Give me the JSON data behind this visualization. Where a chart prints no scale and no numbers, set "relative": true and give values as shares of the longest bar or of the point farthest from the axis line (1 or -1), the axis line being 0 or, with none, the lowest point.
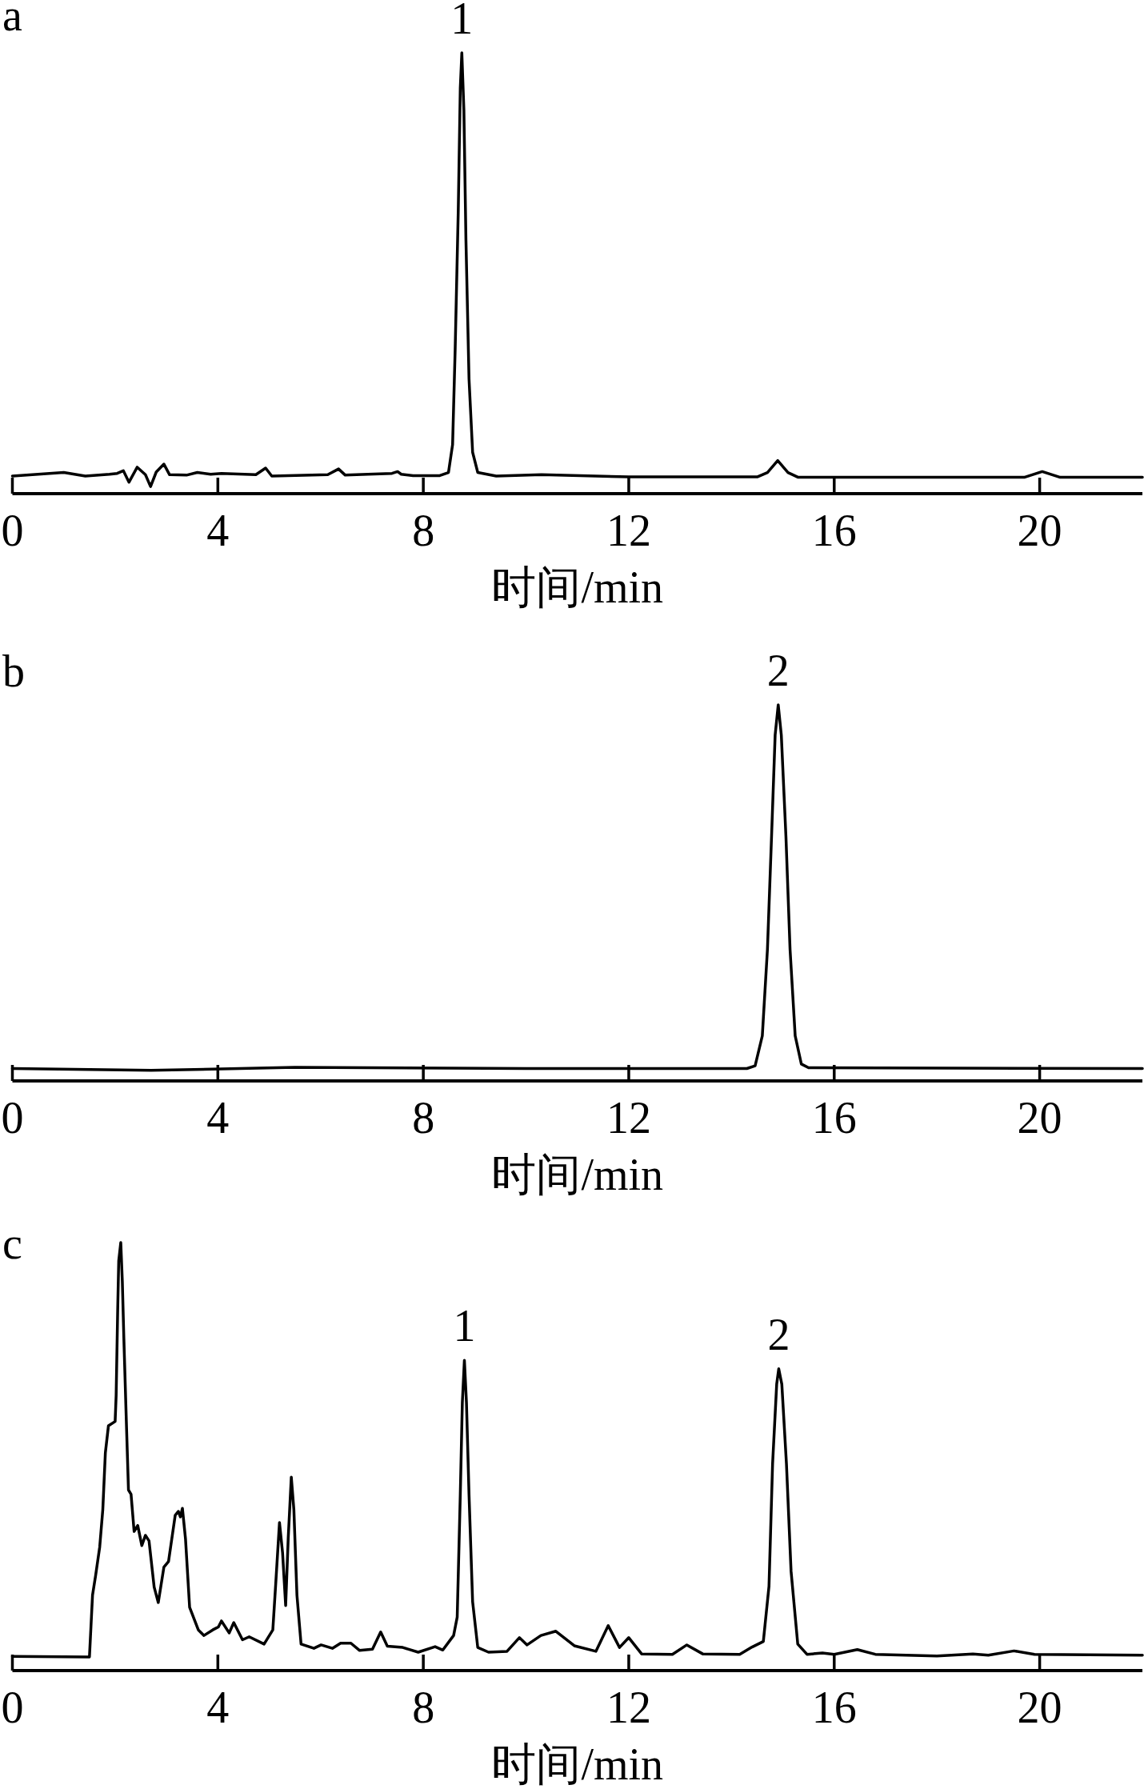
{
  "chart_data": [
    {
      "type": "line",
      "title": "a",
      "xlabel": "时间/min",
      "relative": true,
      "color": "#000000",
      "xlim": [
        0,
        22
      ],
      "xticks": [
        0,
        4,
        8,
        12,
        16,
        20
      ],
      "x": [
        0,
        1.0,
        1.42,
        1.89,
        2.04,
        2.16,
        2.27,
        2.43,
        2.59,
        2.69,
        2.8,
        2.95,
        3.06,
        3.39,
        3.6,
        3.86,
        4.07,
        4.74,
        4.93,
        5.05,
        6.14,
        6.35,
        6.48,
        6.92,
        7.39,
        7.5,
        7.57,
        7.8,
        8.32,
        8.49,
        8.57,
        8.62,
        8.68,
        8.72,
        8.75,
        8.79,
        8.83,
        8.89,
        8.96,
        9.06,
        9.42,
        10.3,
        12,
        14.5,
        14.7,
        14.9,
        15.1,
        15.3,
        19.7,
        20.05,
        20.4,
        22
      ],
      "values": [
        0.04,
        0.048,
        0.04,
        0.044,
        0.046,
        0.052,
        0.026,
        0.06,
        0.043,
        0.016,
        0.049,
        0.067,
        0.043,
        0.042,
        0.048,
        0.044,
        0.046,
        0.043,
        0.058,
        0.04,
        0.043,
        0.056,
        0.042,
        0.044,
        0.046,
        0.05,
        0.044,
        0.041,
        0.041,
        0.048,
        0.111,
        0.326,
        0.64,
        0.92,
        1,
        0.87,
        0.575,
        0.26,
        0.094,
        0.048,
        0.04,
        0.043,
        0.038,
        0.038,
        0.048,
        0.075,
        0.048,
        0.037,
        0.037,
        0.05,
        0.037,
        0.037
      ],
      "annotations": [
        {
          "text": "1",
          "x": 8.75,
          "y": 1
        }
      ]
    },
    {
      "type": "line",
      "title": "b",
      "xlabel": "时间/min",
      "relative": true,
      "color": "#000000",
      "xlim": [
        0,
        22
      ],
      "xticks": [
        0,
        4,
        8,
        12,
        16,
        20
      ],
      "x": [
        0,
        2.7,
        5.5,
        10,
        14.3,
        14.46,
        14.6,
        14.7,
        14.78,
        14.85,
        14.91,
        14.97,
        15.06,
        15.14,
        15.24,
        15.36,
        15.5,
        22
      ],
      "values": [
        0.033,
        0.028,
        0.036,
        0.033,
        0.033,
        0.04,
        0.12,
        0.35,
        0.65,
        0.92,
        1,
        0.92,
        0.65,
        0.35,
        0.12,
        0.045,
        0.035,
        0.033
      ],
      "annotations": [
        {
          "text": "2",
          "x": 14.91,
          "y": 1
        }
      ]
    },
    {
      "type": "line",
      "title": "c",
      "xlabel": "时间/min",
      "relative": true,
      "color": "#000000",
      "xlim": [
        0,
        22
      ],
      "xticks": [
        0,
        4,
        8,
        12,
        16,
        20
      ],
      "x": [
        0,
        1.5,
        1.56,
        1.62,
        1.7,
        1.76,
        1.81,
        1.87,
        2.0,
        2.02,
        2.05,
        2.07,
        2.11,
        2.14,
        2.17,
        2.22,
        2.26,
        2.31,
        2.37,
        2.44,
        2.52,
        2.59,
        2.66,
        2.76,
        2.84,
        2.95,
        3.04,
        3.17,
        3.23,
        3.27,
        3.31,
        3.37,
        3.45,
        3.62,
        3.73,
        3.9,
        4.01,
        4.07,
        4.22,
        4.31,
        4.48,
        4.61,
        4.9,
        5.07,
        5.13,
        5.2,
        5.26,
        5.32,
        5.37,
        5.43,
        5.48,
        5.54,
        5.62,
        5.87,
        6.01,
        6.23,
        6.39,
        6.59,
        6.76,
        7.01,
        7.17,
        7.3,
        7.6,
        7.9,
        8.23,
        8.38,
        8.59,
        8.66,
        8.72,
        8.76,
        8.8,
        8.84,
        8.89,
        8.96,
        9.06,
        9.27,
        9.63,
        9.87,
        10.02,
        10.29,
        10.58,
        10.94,
        11.36,
        11.6,
        11.82,
        12.0,
        12.25,
        12.85,
        13.13,
        13.44,
        14.16,
        14.4,
        14.62,
        14.73,
        14.8,
        14.88,
        14.92,
        14.98,
        15.07,
        15.16,
        15.29,
        15.47,
        15.77,
        16.0,
        16.45,
        16.8,
        18.0,
        18.7,
        19.0,
        19.5,
        19.9,
        22
      ],
      "values": [
        0.033,
        0.032,
        0.176,
        0.222,
        0.289,
        0.376,
        0.509,
        0.572,
        0.582,
        0.643,
        0.843,
        0.957,
        1,
        0.91,
        0.776,
        0.576,
        0.422,
        0.412,
        0.325,
        0.339,
        0.292,
        0.316,
        0.303,
        0.195,
        0.159,
        0.242,
        0.255,
        0.363,
        0.372,
        0.359,
        0.379,
        0.308,
        0.148,
        0.095,
        0.082,
        0.095,
        0.102,
        0.116,
        0.088,
        0.112,
        0.072,
        0.079,
        0.062,
        0.095,
        0.209,
        0.346,
        0.275,
        0.152,
        0.309,
        0.452,
        0.376,
        0.176,
        0.062,
        0.052,
        0.06,
        0.052,
        0.064,
        0.064,
        0.047,
        0.05,
        0.09,
        0.057,
        0.054,
        0.043,
        0.056,
        0.048,
        0.082,
        0.125,
        0.411,
        0.626,
        0.725,
        0.626,
        0.411,
        0.161,
        0.054,
        0.043,
        0.045,
        0.077,
        0.06,
        0.082,
        0.092,
        0.058,
        0.045,
        0.105,
        0.054,
        0.077,
        0.039,
        0.038,
        0.06,
        0.039,
        0.038,
        0.055,
        0.068,
        0.197,
        0.483,
        0.669,
        0.705,
        0.669,
        0.483,
        0.232,
        0.062,
        0.038,
        0.041,
        0.038,
        0.049,
        0.038,
        0.034,
        0.039,
        0.036,
        0.046,
        0.038,
        0.036
      ],
      "annotations": [
        {
          "text": "1",
          "x": 8.8,
          "y": 0.725
        },
        {
          "text": "2",
          "x": 14.92,
          "y": 0.705
        }
      ]
    }
  ]
}
